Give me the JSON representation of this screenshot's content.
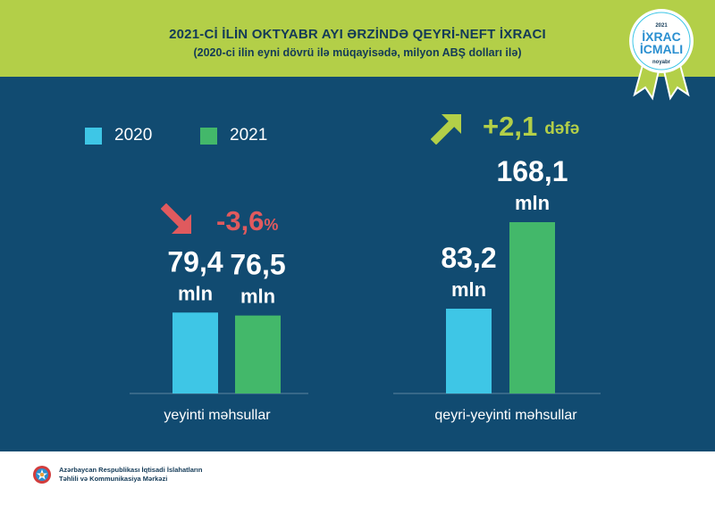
{
  "header": {
    "title": "2021-Cİ İLİN OKTYABR AYI ƏRZİNDƏ QEYRİ-NEFT İXRACI",
    "subtitle": "(2020-ci ilin eyni dövrü ilə müqayisədə, milyon ABŞ dolları ilə)"
  },
  "badge": {
    "year": "2021",
    "line1": "İXRAC",
    "line2": "İCMALI",
    "month": "noyabr"
  },
  "legend": [
    {
      "label": "2020",
      "color": "#3ec6e6"
    },
    {
      "label": "2021",
      "color": "#43b86a"
    }
  ],
  "changes": {
    "group1": {
      "value": "-3,6",
      "suffix": "%",
      "color": "#e05a5e",
      "direction": "down"
    },
    "group2": {
      "value": "+2,1",
      "suffix": "dəfə",
      "color": "#b3cf48",
      "direction": "up"
    }
  },
  "chart_data": {
    "type": "bar",
    "categories": [
      "yeyinti məhsullar",
      "qeyri-yeyinti məhsullar"
    ],
    "series": [
      {
        "name": "2020",
        "values": [
          79.4,
          83.2
        ],
        "labels": [
          "79,4",
          "83,2"
        ],
        "color": "#3ec6e6"
      },
      {
        "name": "2021",
        "values": [
          76.5,
          168.1
        ],
        "labels": [
          "76,5",
          "168,1"
        ],
        "color": "#43b86a"
      }
    ],
    "unit_label": "mln",
    "ylim": [
      0,
      168.1
    ]
  },
  "footer": {
    "org_line1": "Azərbaycan Respublikası İqtisadi İslahatların",
    "org_line2": "Təhlili və Kommunikasiya Mərkəzi"
  }
}
